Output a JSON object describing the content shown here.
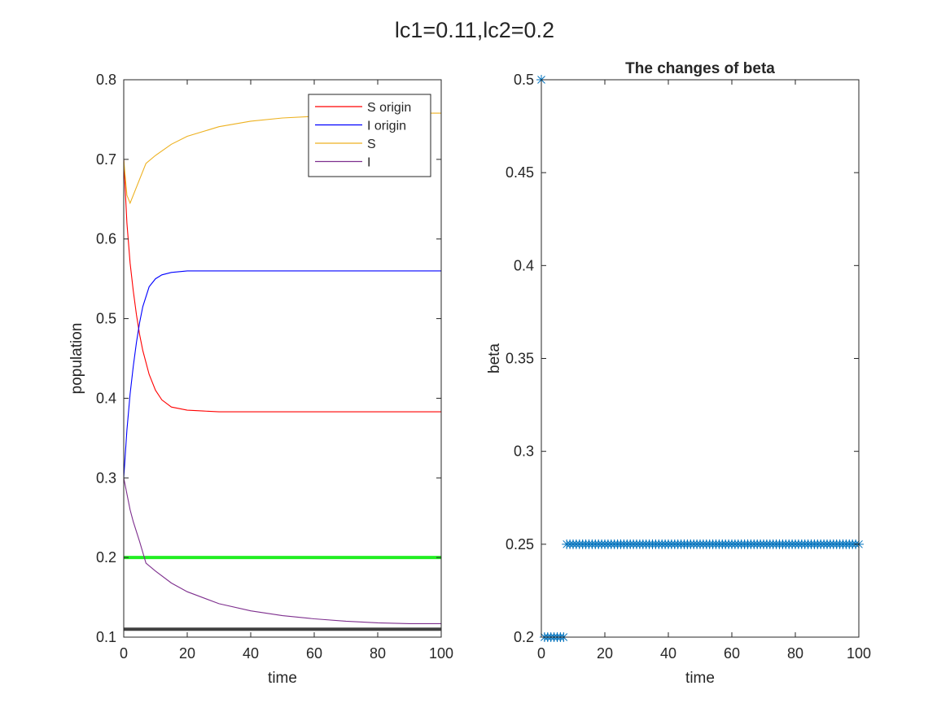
{
  "figure": {
    "title": "lc1=0.11,lc2=0.2"
  },
  "chart_data": [
    {
      "type": "line",
      "title": "",
      "xlabel": "time",
      "ylabel": "population",
      "xlim": [
        0,
        100
      ],
      "ylim": [
        0.1,
        0.8
      ],
      "xticks": [
        "0",
        "20",
        "40",
        "60",
        "80",
        "100"
      ],
      "yticks": [
        "0.1",
        "0.2",
        "0.3",
        "0.4",
        "0.5",
        "0.6",
        "0.7",
        "0.8"
      ],
      "grid": false,
      "legend_placement": "top-right",
      "series": [
        {
          "name": "S origin",
          "color": "#ff0000",
          "x": [
            0,
            1,
            2,
            3,
            4,
            5,
            6,
            8,
            10,
            12,
            15,
            20,
            25,
            30,
            40,
            50,
            60,
            70,
            80,
            90,
            100
          ],
          "y": [
            0.7,
            0.62,
            0.57,
            0.535,
            0.505,
            0.48,
            0.46,
            0.43,
            0.41,
            0.398,
            0.389,
            0.385,
            0.384,
            0.383,
            0.383,
            0.383,
            0.383,
            0.383,
            0.383,
            0.383,
            0.383
          ]
        },
        {
          "name": "I origin",
          "color": "#0000ff",
          "x": [
            0,
            1,
            2,
            3,
            4,
            5,
            6,
            8,
            10,
            12,
            15,
            20,
            25,
            30,
            40,
            50,
            60,
            70,
            80,
            90,
            100
          ],
          "y": [
            0.3,
            0.36,
            0.405,
            0.44,
            0.47,
            0.495,
            0.515,
            0.54,
            0.55,
            0.555,
            0.558,
            0.56,
            0.56,
            0.56,
            0.56,
            0.56,
            0.56,
            0.56,
            0.56,
            0.56,
            0.56
          ]
        },
        {
          "name": "S",
          "color": "#edb120",
          "x": [
            0,
            1,
            2,
            3,
            5,
            7,
            10,
            15,
            20,
            30,
            40,
            50,
            60,
            70,
            80,
            90,
            100
          ],
          "y": [
            0.7,
            0.655,
            0.645,
            0.655,
            0.675,
            0.695,
            0.705,
            0.719,
            0.729,
            0.741,
            0.748,
            0.752,
            0.754,
            0.756,
            0.757,
            0.758,
            0.758
          ]
        },
        {
          "name": "I",
          "color": "#7e2f8e",
          "x": [
            0,
            1,
            2,
            3,
            5,
            7,
            10,
            15,
            20,
            30,
            40,
            50,
            60,
            70,
            80,
            90,
            100
          ],
          "y": [
            0.3,
            0.28,
            0.26,
            0.245,
            0.22,
            0.193,
            0.183,
            0.168,
            0.157,
            0.142,
            0.133,
            0.127,
            0.123,
            0.12,
            0.118,
            0.117,
            0.117
          ]
        }
      ],
      "reference_lines": [
        {
          "y": 0.2,
          "color": "#22ee22"
        },
        {
          "y": 0.11,
          "color": "#404040"
        }
      ]
    },
    {
      "type": "scatter",
      "title": "The changes of beta",
      "xlabel": "time",
      "ylabel": "beta",
      "xlim": [
        0,
        100
      ],
      "ylim": [
        0.2,
        0.5
      ],
      "xticks": [
        "0",
        "20",
        "40",
        "60",
        "80",
        "100"
      ],
      "yticks": [
        "0.2",
        "0.25",
        "0.3",
        "0.35",
        "0.4",
        "0.45",
        "0.5"
      ],
      "grid": false,
      "marker": "asterisk",
      "color": "#0072bd",
      "points": [
        [
          0,
          0.5
        ],
        [
          1,
          0.2
        ],
        [
          2,
          0.2
        ],
        [
          3,
          0.2
        ],
        [
          4,
          0.2
        ],
        [
          5,
          0.2
        ],
        [
          6,
          0.2
        ],
        [
          7,
          0.2
        ],
        [
          8,
          0.25
        ],
        [
          9,
          0.25
        ],
        [
          10,
          0.25
        ],
        [
          11,
          0.25
        ],
        [
          12,
          0.25
        ],
        [
          13,
          0.25
        ],
        [
          14,
          0.25
        ],
        [
          15,
          0.25
        ],
        [
          16,
          0.25
        ],
        [
          17,
          0.25
        ],
        [
          18,
          0.25
        ],
        [
          19,
          0.25
        ],
        [
          20,
          0.25
        ],
        [
          21,
          0.25
        ],
        [
          22,
          0.25
        ],
        [
          23,
          0.25
        ],
        [
          24,
          0.25
        ],
        [
          25,
          0.25
        ],
        [
          26,
          0.25
        ],
        [
          27,
          0.25
        ],
        [
          28,
          0.25
        ],
        [
          29,
          0.25
        ],
        [
          30,
          0.25
        ],
        [
          31,
          0.25
        ],
        [
          32,
          0.25
        ],
        [
          33,
          0.25
        ],
        [
          34,
          0.25
        ],
        [
          35,
          0.25
        ],
        [
          36,
          0.25
        ],
        [
          37,
          0.25
        ],
        [
          38,
          0.25
        ],
        [
          39,
          0.25
        ],
        [
          40,
          0.25
        ],
        [
          41,
          0.25
        ],
        [
          42,
          0.25
        ],
        [
          43,
          0.25
        ],
        [
          44,
          0.25
        ],
        [
          45,
          0.25
        ],
        [
          46,
          0.25
        ],
        [
          47,
          0.25
        ],
        [
          48,
          0.25
        ],
        [
          49,
          0.25
        ],
        [
          50,
          0.25
        ],
        [
          51,
          0.25
        ],
        [
          52,
          0.25
        ],
        [
          53,
          0.25
        ],
        [
          54,
          0.25
        ],
        [
          55,
          0.25
        ],
        [
          56,
          0.25
        ],
        [
          57,
          0.25
        ],
        [
          58,
          0.25
        ],
        [
          59,
          0.25
        ],
        [
          60,
          0.25
        ],
        [
          61,
          0.25
        ],
        [
          62,
          0.25
        ],
        [
          63,
          0.25
        ],
        [
          64,
          0.25
        ],
        [
          65,
          0.25
        ],
        [
          66,
          0.25
        ],
        [
          67,
          0.25
        ],
        [
          68,
          0.25
        ],
        [
          69,
          0.25
        ],
        [
          70,
          0.25
        ],
        [
          71,
          0.25
        ],
        [
          72,
          0.25
        ],
        [
          73,
          0.25
        ],
        [
          74,
          0.25
        ],
        [
          75,
          0.25
        ],
        [
          76,
          0.25
        ],
        [
          77,
          0.25
        ],
        [
          78,
          0.25
        ],
        [
          79,
          0.25
        ],
        [
          80,
          0.25
        ],
        [
          81,
          0.25
        ],
        [
          82,
          0.25
        ],
        [
          83,
          0.25
        ],
        [
          84,
          0.25
        ],
        [
          85,
          0.25
        ],
        [
          86,
          0.25
        ],
        [
          87,
          0.25
        ],
        [
          88,
          0.25
        ],
        [
          89,
          0.25
        ],
        [
          90,
          0.25
        ],
        [
          91,
          0.25
        ],
        [
          92,
          0.25
        ],
        [
          93,
          0.25
        ],
        [
          94,
          0.25
        ],
        [
          95,
          0.25
        ],
        [
          96,
          0.25
        ],
        [
          97,
          0.25
        ],
        [
          98,
          0.25
        ],
        [
          99,
          0.25
        ],
        [
          100,
          0.25
        ]
      ]
    }
  ]
}
